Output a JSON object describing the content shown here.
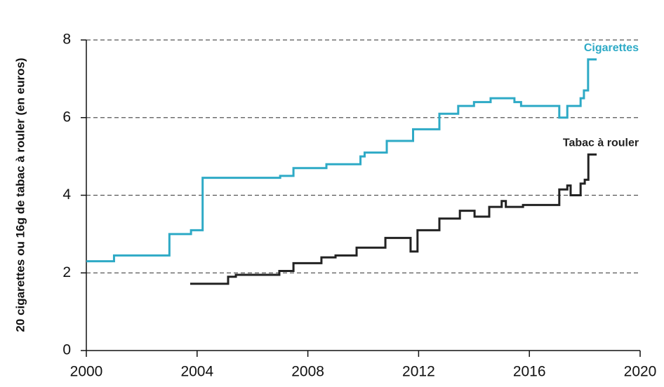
{
  "chart_data": {
    "type": "line",
    "step": "post",
    "y_label": "20 cigarettes ou 16g de tabac à rouler (en euros)",
    "xlim": [
      2000,
      2020
    ],
    "xticks": [
      2000,
      2004,
      2008,
      2012,
      2016,
      2020
    ],
    "ylim": [
      0,
      8
    ],
    "yticks": [
      0,
      2,
      4,
      6,
      8
    ],
    "grid": true,
    "series": [
      {
        "name": "Cigarettes",
        "color": "#2eaac6",
        "x": [
          2000,
          2001,
          2003,
          2003.78,
          2004.2,
          2007,
          2007.48,
          2008.67,
          2009.9,
          2010.05,
          2010.85,
          2011.8,
          2012.75,
          2013.43,
          2014.0,
          2014.6,
          2015.46,
          2015.7,
          2017.08,
          2017.37,
          2017.85,
          2017.97,
          2018.12,
          2018.43
        ],
        "values": [
          2.3,
          2.45,
          3.0,
          3.1,
          4.45,
          4.5,
          4.7,
          4.8,
          5.0,
          5.1,
          5.4,
          5.7,
          6.1,
          6.3,
          6.4,
          6.5,
          6.4,
          6.3,
          6.0,
          6.3,
          6.5,
          6.7,
          7.5,
          7.5
        ]
      },
      {
        "name": "Tabac à rouler",
        "color": "#222222",
        "x": [
          2003.75,
          2005.12,
          2005.4,
          2006.97,
          2007.48,
          2008.49,
          2009.0,
          2009.76,
          2010.8,
          2011.71,
          2011.96,
          2012.75,
          2013.49,
          2014.02,
          2014.55,
          2015.0,
          2015.15,
          2015.77,
          2017.08,
          2017.37,
          2017.49,
          2017.85,
          2018.0,
          2018.13,
          2018.43
        ],
        "values": [
          1.72,
          1.9,
          1.95,
          2.05,
          2.25,
          2.4,
          2.45,
          2.65,
          2.9,
          2.55,
          3.1,
          3.4,
          3.6,
          3.45,
          3.7,
          3.85,
          3.7,
          3.75,
          4.15,
          4.25,
          4.0,
          4.3,
          4.4,
          5.05,
          5.05
        ]
      }
    ]
  }
}
